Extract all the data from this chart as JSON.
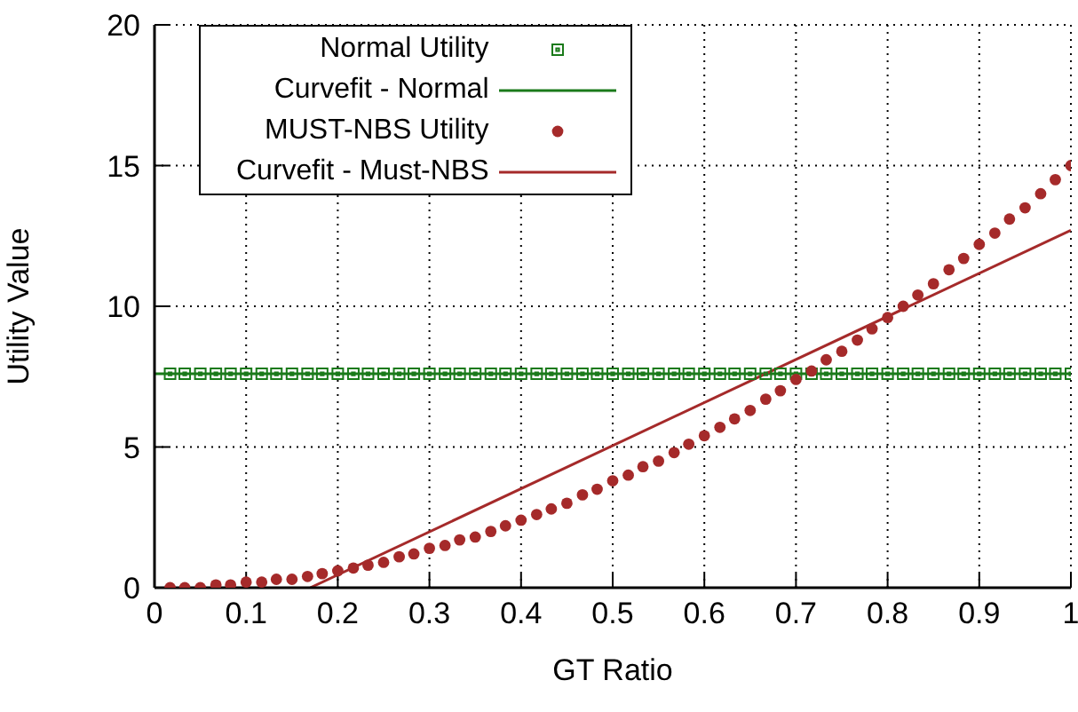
{
  "chart_data": {
    "type": "scatter",
    "xlabel": "GT Ratio",
    "ylabel": "Utility Value",
    "xlim": [
      0,
      1
    ],
    "ylim": [
      0,
      20
    ],
    "xticks": [
      0,
      0.1,
      0.2,
      0.3,
      0.4,
      0.5,
      0.6,
      0.7,
      0.8,
      0.9,
      1
    ],
    "yticks": [
      0,
      5,
      10,
      15,
      20
    ],
    "grid": true,
    "legend": "top left",
    "x": [
      0.017,
      0.033,
      0.05,
      0.067,
      0.083,
      0.1,
      0.117,
      0.133,
      0.15,
      0.167,
      0.183,
      0.2,
      0.217,
      0.233,
      0.25,
      0.267,
      0.283,
      0.3,
      0.317,
      0.333,
      0.35,
      0.367,
      0.383,
      0.4,
      0.417,
      0.433,
      0.45,
      0.467,
      0.483,
      0.5,
      0.517,
      0.533,
      0.55,
      0.567,
      0.583,
      0.6,
      0.617,
      0.633,
      0.65,
      0.667,
      0.683,
      0.7,
      0.717,
      0.733,
      0.75,
      0.767,
      0.783,
      0.8,
      0.817,
      0.833,
      0.85,
      0.867,
      0.883,
      0.9,
      0.917,
      0.933,
      0.95,
      0.967,
      0.983,
      1
    ],
    "series": [
      {
        "name": "Normal Utility",
        "marker": "square",
        "color": "#1a7a1a",
        "values": [
          7.6,
          7.6,
          7.6,
          7.6,
          7.6,
          7.6,
          7.6,
          7.6,
          7.6,
          7.6,
          7.6,
          7.6,
          7.6,
          7.6,
          7.6,
          7.6,
          7.6,
          7.6,
          7.6,
          7.6,
          7.6,
          7.6,
          7.6,
          7.6,
          7.6,
          7.6,
          7.6,
          7.6,
          7.6,
          7.6,
          7.6,
          7.6,
          7.6,
          7.6,
          7.6,
          7.6,
          7.6,
          7.6,
          7.6,
          7.6,
          7.6,
          7.6,
          7.6,
          7.6,
          7.6,
          7.6,
          7.6,
          7.6,
          7.6,
          7.6,
          7.6,
          7.6,
          7.6,
          7.6,
          7.6,
          7.6,
          7.6,
          7.6,
          7.6,
          7.6
        ]
      },
      {
        "name": "Curvefit - Normal",
        "type": "line",
        "color": "#1a7a1a",
        "x": [
          0,
          1
        ],
        "values": [
          7.6,
          7.6
        ]
      },
      {
        "name": "MUST-NBS Utility",
        "marker": "circle",
        "color": "#a52a2a",
        "values": [
          0.0,
          0.0,
          0.0,
          0.1,
          0.1,
          0.2,
          0.2,
          0.3,
          0.3,
          0.4,
          0.5,
          0.6,
          0.7,
          0.8,
          0.9,
          1.1,
          1.2,
          1.4,
          1.5,
          1.7,
          1.8,
          2.0,
          2.2,
          2.4,
          2.6,
          2.8,
          3.0,
          3.3,
          3.5,
          3.8,
          4.0,
          4.3,
          4.5,
          4.8,
          5.1,
          5.4,
          5.7,
          6.0,
          6.3,
          6.7,
          7.0,
          7.4,
          7.7,
          8.1,
          8.4,
          8.8,
          9.2,
          9.6,
          10.0,
          10.4,
          10.8,
          11.3,
          11.7,
          12.2,
          12.6,
          13.1,
          13.5,
          14.0,
          14.5,
          15.0
        ]
      },
      {
        "name": "Curvefit - Must-NBS",
        "type": "line",
        "color": "#a52a2a",
        "x": [
          0.17,
          1
        ],
        "values": [
          0,
          12.7
        ]
      }
    ]
  }
}
